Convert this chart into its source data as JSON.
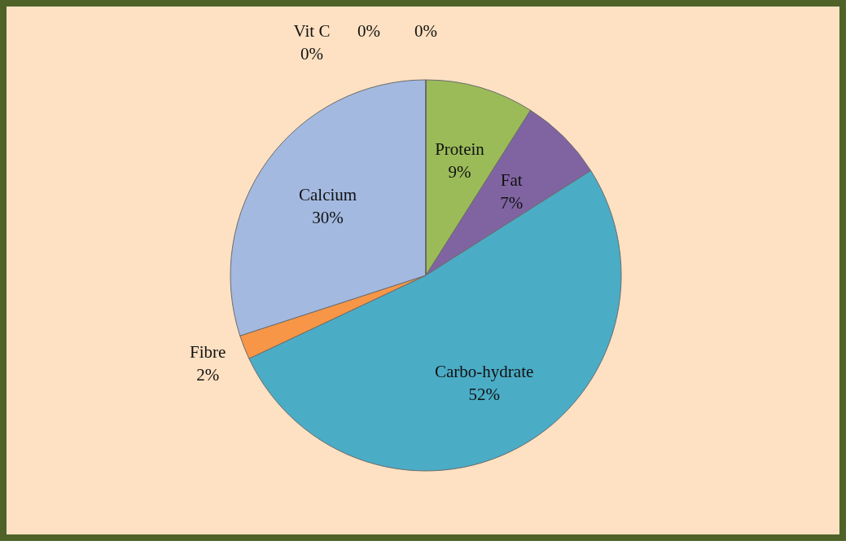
{
  "chart_data": {
    "type": "pie",
    "categories": [
      "Protein",
      "Fat",
      "Carbo-hydrate",
      "Fibre",
      "Calcium",
      "Vit C",
      null,
      null
    ],
    "values": [
      9,
      7,
      52,
      2,
      30,
      0,
      0,
      0
    ],
    "value_labels": [
      "9%",
      "7%",
      "52%",
      "2%",
      "30%",
      "0%",
      "0%",
      "0%"
    ],
    "colors": [
      "#9bbb59",
      "#8064a2",
      "#4bacc6",
      "#f79646",
      "#a3b9e0",
      "#c0504d",
      "#4f81bd",
      "#f2dcdb"
    ]
  }
}
